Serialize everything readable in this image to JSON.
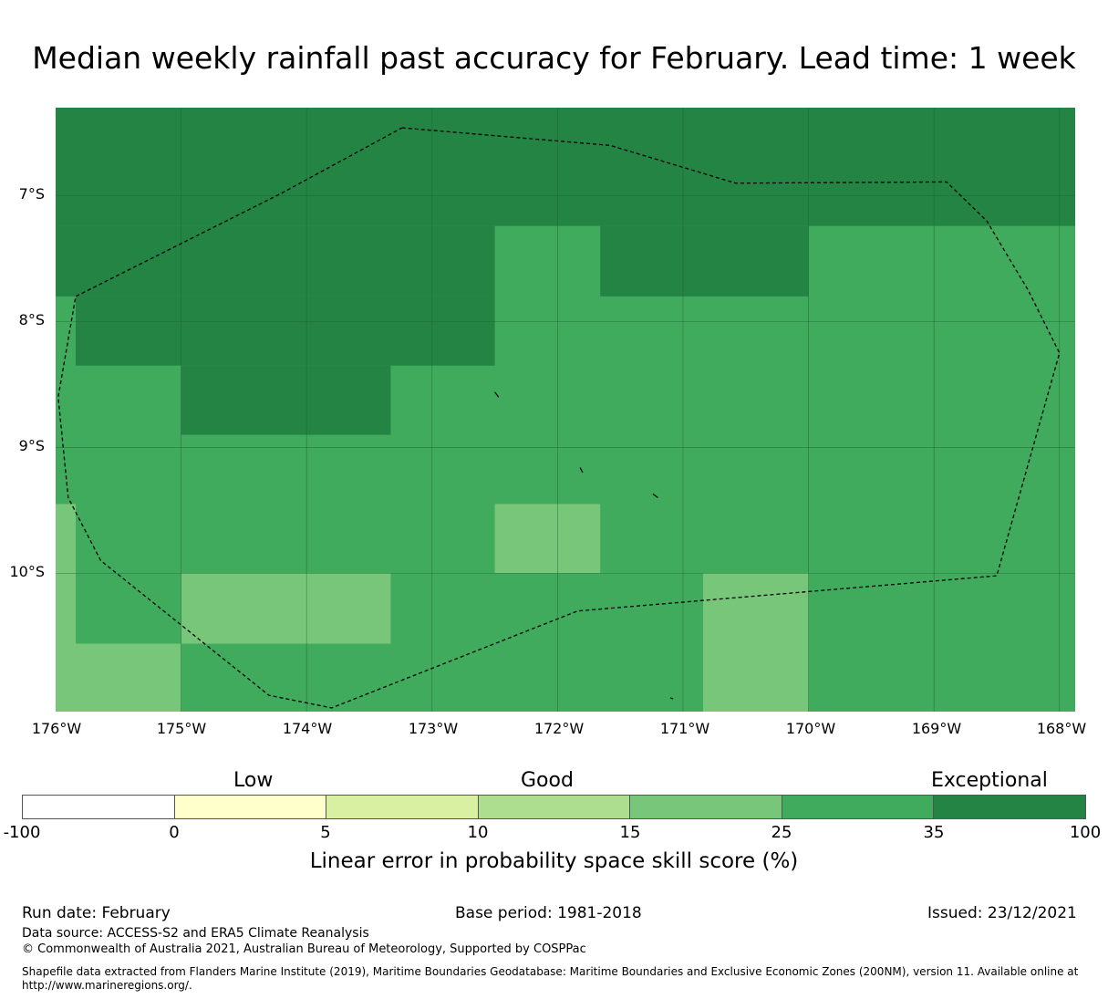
{
  "title": "Median weekly rainfall past accuracy for February. Lead time: 1 week",
  "map": {
    "lon_range": [
      -176,
      -167.875
    ],
    "lat_range": [
      -6.3,
      -11.1
    ],
    "y_ticks": [
      "7°S",
      "8°S",
      "9°S",
      "10°S"
    ],
    "x_ticks": [
      "176°W",
      "175°W",
      "174°W",
      "173°W",
      "172°W",
      "171°W",
      "170°W",
      "169°W",
      "168°W"
    ],
    "background_color": "#41ab5d",
    "cell_colors": {
      "dark": "#238443",
      "medium": "#41ab5d",
      "light": "#78c679"
    },
    "cells": [
      {
        "lon": [
          -176,
          -167.875
        ],
        "lat": [
          -6.3,
          -7.24
        ],
        "color": "dark"
      },
      {
        "lon": [
          -176,
          -172.5
        ],
        "lat": [
          -7.24,
          -7.8
        ],
        "color": "dark"
      },
      {
        "lon": [
          -171.66,
          -170.0
        ],
        "lat": [
          -7.24,
          -7.8
        ],
        "color": "dark"
      },
      {
        "lon": [
          -175.84,
          -172.5
        ],
        "lat": [
          -7.8,
          -8.35
        ],
        "color": "dark"
      },
      {
        "lon": [
          -175.0,
          -173.33
        ],
        "lat": [
          -8.35,
          -8.9
        ],
        "color": "dark"
      },
      {
        "lon": [
          -176,
          -175.84
        ],
        "lat": [
          -9.45,
          -10.0
        ],
        "color": "light"
      },
      {
        "lon": [
          -172.5,
          -171.66
        ],
        "lat": [
          -9.45,
          -10.0
        ],
        "color": "light"
      },
      {
        "lon": [
          -176,
          -175.84
        ],
        "lat": [
          -10.0,
          -10.56
        ],
        "color": "light"
      },
      {
        "lon": [
          -175.0,
          -173.33
        ],
        "lat": [
          -10.0,
          -10.56
        ],
        "color": "light"
      },
      {
        "lon": [
          -170.84,
          -170.0
        ],
        "lat": [
          -10.0,
          -11.1
        ],
        "color": "light"
      },
      {
        "lon": [
          -176,
          -175.0
        ],
        "lat": [
          -10.56,
          -11.1
        ],
        "color": "light"
      }
    ],
    "eez_boundary": [
      [
        -173.24,
        -6.46
      ],
      [
        -171.58,
        -6.6
      ],
      [
        -170.58,
        -6.9
      ],
      [
        -168.9,
        -6.89
      ],
      [
        -168.58,
        -7.2
      ],
      [
        -168.25,
        -7.75
      ],
      [
        -168.0,
        -8.25
      ],
      [
        -168.5,
        -10.02
      ],
      [
        -171.84,
        -10.3
      ],
      [
        -173.8,
        -11.07
      ],
      [
        -174.3,
        -10.97
      ],
      [
        -175.64,
        -9.9
      ],
      [
        -175.9,
        -9.4
      ],
      [
        -175.98,
        -8.6
      ],
      [
        -175.84,
        -7.8
      ],
      [
        -175.0,
        -7.38
      ],
      [
        -174.2,
        -6.98
      ],
      [
        -173.24,
        -6.46
      ]
    ]
  },
  "colorbar": {
    "categories": [
      {
        "label": "Low",
        "center_value": 0.25
      },
      {
        "label": "Good",
        "center_value": 0.5
      },
      {
        "label": "Exceptional",
        "center_value": 0.92
      }
    ],
    "colors": [
      "#ffffff",
      "#ffffcc",
      "#d9f0a3",
      "#addd8e",
      "#78c679",
      "#41ab5d",
      "#238443"
    ],
    "ticks": [
      "-100",
      "0",
      "5",
      "10",
      "15",
      "25",
      "35",
      "100"
    ],
    "label": "Linear error in probability space skill score (%)"
  },
  "footer": {
    "run_date": "Run date: February",
    "base_period": "Base period: 1981-2018",
    "issued": "Issued: 23/12/2021",
    "data_source": "Data source: ACCESS-S2 and ERA5 Climate Reanalysis",
    "copyright": "© Commonwealth of Australia 2021, Australian Bureau of Meteorology, Supported by COSPPac",
    "shapefile_line1": "Shapefile data extracted from Flanders Marine Institute (2019), Maritime Boundaries Geodatabase: Maritime Boundaries and Exclusive Economic Zones (200NM), version 11. Available online at",
    "shapefile_line2": "http://www.marineregions.org/."
  }
}
